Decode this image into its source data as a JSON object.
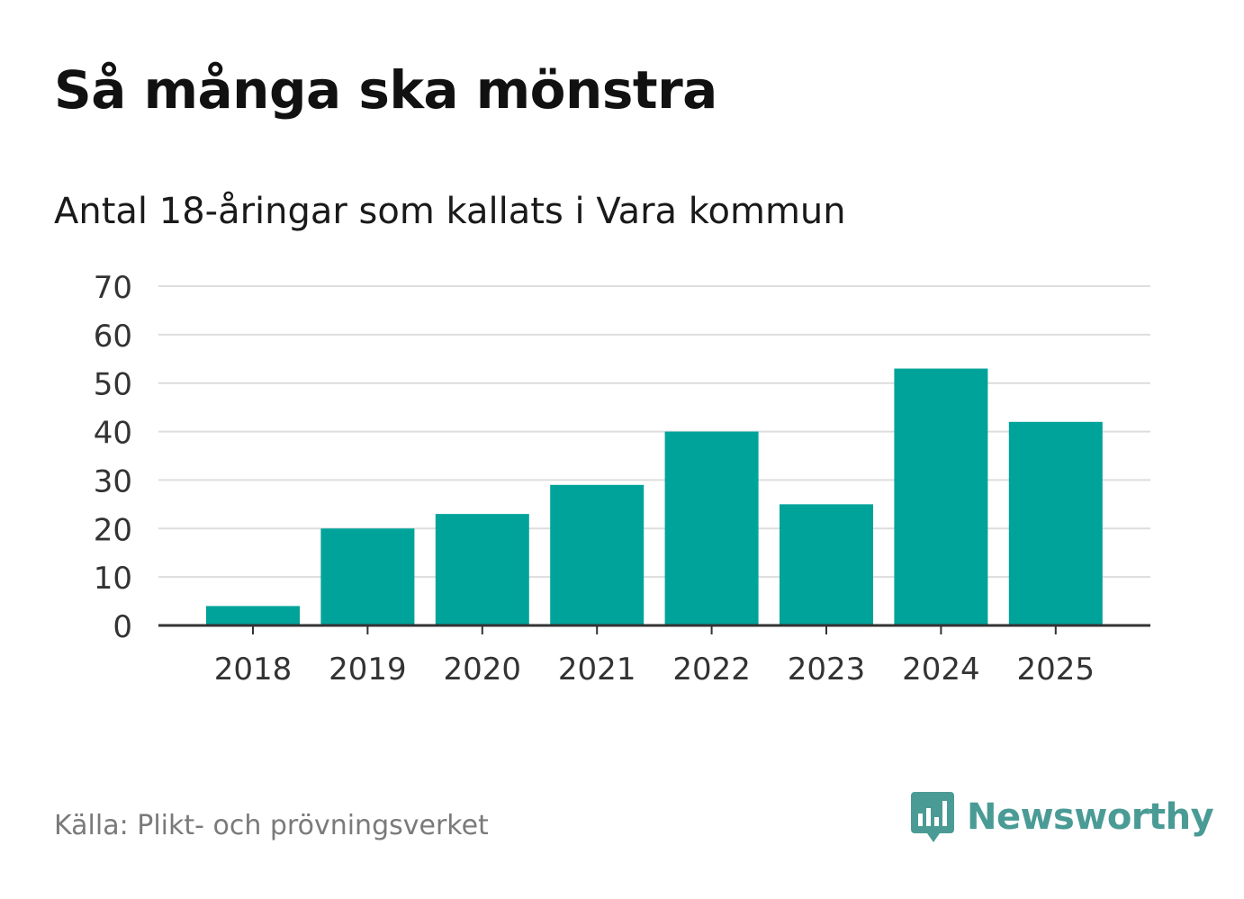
{
  "title": "Så många ska mönstra",
  "subtitle": "Antal 18-åringar som kallats i Vara kommun",
  "source": "Källa: Plikt- och prövningsverket",
  "brand": {
    "name": "Newsworthy",
    "icon": "newsworthy-logo-icon",
    "color": "#4a9b95"
  },
  "colors": {
    "bar": "#00a39a",
    "grid": "#dddddd",
    "axis": "#333333",
    "tick_text": "#333333"
  },
  "chart_data": {
    "type": "bar",
    "title": "Antal 18-åringar som kallats i Vara kommun",
    "xlabel": "",
    "ylabel": "",
    "categories": [
      "2018",
      "2019",
      "2020",
      "2021",
      "2022",
      "2023",
      "2024",
      "2025"
    ],
    "values": [
      4,
      20,
      23,
      29,
      40,
      25,
      53,
      42
    ],
    "ylim": [
      0,
      70
    ],
    "yticks": [
      0,
      10,
      20,
      30,
      40,
      50,
      60,
      70
    ],
    "grid": true,
    "legend": "none"
  }
}
